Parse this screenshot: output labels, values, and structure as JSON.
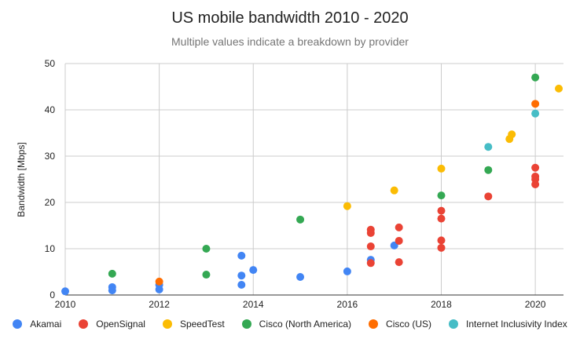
{
  "chart_data": {
    "type": "scatter",
    "title": "US mobile bandwidth 2010 - 2020",
    "subtitle": "Multiple values indicate a breakdown by provider",
    "xlabel": "",
    "ylabel": "Bandwidth [Mbps]",
    "xlim": [
      2010,
      2020.6
    ],
    "ylim": [
      0,
      50
    ],
    "xticks": [
      2010,
      2012,
      2014,
      2016,
      2018,
      2020
    ],
    "yticks": [
      0,
      10,
      20,
      30,
      40,
      50
    ],
    "grid": true,
    "legend_position": "bottom",
    "series": [
      {
        "name": "Akamai",
        "color": "#4285F4",
        "points": [
          [
            2010,
            0.8
          ],
          [
            2011,
            1.7
          ],
          [
            2011,
            1.0
          ],
          [
            2012,
            2.2
          ],
          [
            2012,
            1.2
          ],
          [
            2013.75,
            8.5
          ],
          [
            2013.75,
            4.2
          ],
          [
            2013.75,
            2.2
          ],
          [
            2014,
            5.4
          ],
          [
            2015,
            3.9
          ],
          [
            2016,
            5.1
          ],
          [
            2016.5,
            7.6
          ],
          [
            2017,
            10.7
          ]
        ]
      },
      {
        "name": "OpenSignal",
        "color": "#EA4335",
        "points": [
          [
            2016.5,
            14.1
          ],
          [
            2016.5,
            13.4
          ],
          [
            2016.5,
            10.5
          ],
          [
            2016.5,
            6.9
          ],
          [
            2017.1,
            14.6
          ],
          [
            2017.1,
            11.7
          ],
          [
            2017.1,
            7.1
          ],
          [
            2018,
            18.2
          ],
          [
            2018,
            16.5
          ],
          [
            2018,
            11.8
          ],
          [
            2018,
            10.2
          ],
          [
            2019,
            21.3
          ],
          [
            2020,
            27.5
          ],
          [
            2020,
            25.6
          ],
          [
            2020,
            25.0
          ],
          [
            2020,
            23.9
          ]
        ]
      },
      {
        "name": "SpeedTest",
        "color": "#FBBC04",
        "points": [
          [
            2016,
            19.2
          ],
          [
            2017,
            22.6
          ],
          [
            2018,
            27.3
          ],
          [
            2019.45,
            33.7
          ],
          [
            2019.5,
            34.7
          ],
          [
            2020.5,
            44.6
          ]
        ]
      },
      {
        "name": "Cisco (North America)",
        "color": "#34A853",
        "points": [
          [
            2011,
            4.6
          ],
          [
            2013,
            10.0
          ],
          [
            2013,
            4.4
          ],
          [
            2015,
            16.3
          ],
          [
            2018,
            21.5
          ],
          [
            2019,
            27.0
          ],
          [
            2020,
            47.0
          ]
        ]
      },
      {
        "name": "Cisco (US)",
        "color": "#FF6D01",
        "points": [
          [
            2012,
            2.9
          ],
          [
            2020,
            41.3
          ]
        ]
      },
      {
        "name": "Internet Inclusivity Index",
        "color": "#46BDC6",
        "points": [
          [
            2019,
            32.0
          ],
          [
            2020,
            39.2
          ]
        ]
      }
    ]
  }
}
